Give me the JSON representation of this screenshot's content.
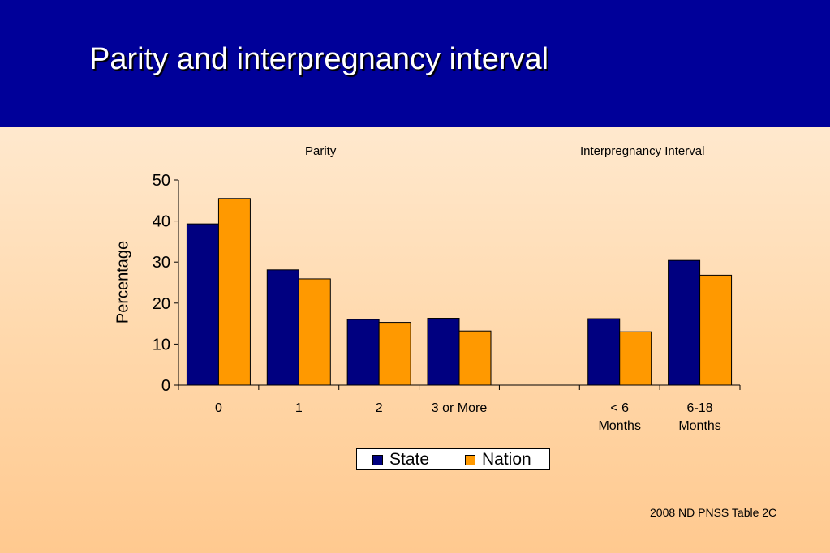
{
  "header": {
    "title": "Parity and interpregnancy interval"
  },
  "chart_data": {
    "type": "bar",
    "group_labels": [
      "Parity",
      "Interpregnancy Interval"
    ],
    "categories": [
      "0",
      "1",
      "2",
      "3 or More",
      "",
      "< 6\nMonths",
      "6-18\nMonths"
    ],
    "series": [
      {
        "name": "State",
        "color": "#000080",
        "values": [
          39.3,
          28.1,
          16.0,
          16.3,
          null,
          16.2,
          30.4
        ]
      },
      {
        "name": "Nation",
        "color": "#ff9900",
        "values": [
          45.5,
          25.9,
          15.3,
          13.2,
          null,
          13.0,
          26.8
        ]
      }
    ],
    "ylabel": "Percentage",
    "ylim": [
      0,
      50
    ],
    "yticks": [
      "0",
      "10",
      "20",
      "30",
      "40",
      "50"
    ],
    "legend_position": "bottom",
    "grid": false
  },
  "footer": {
    "source": "2008 ND PNSS Table 2C"
  }
}
